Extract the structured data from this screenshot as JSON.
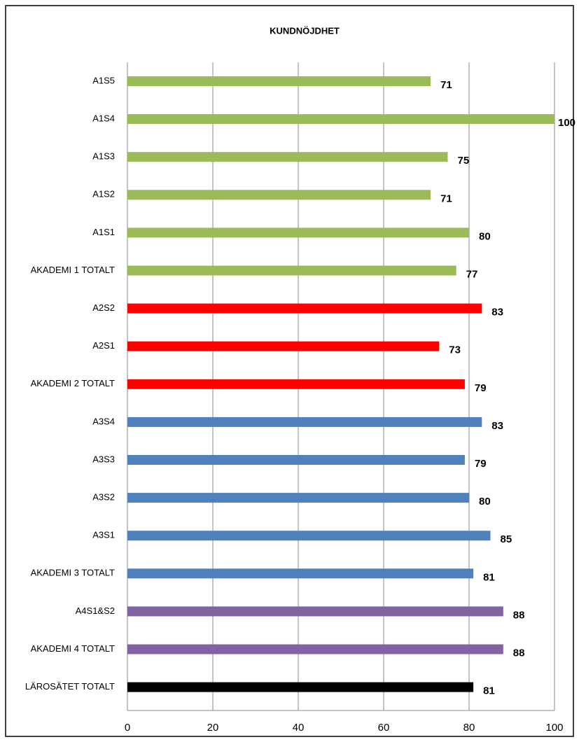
{
  "chart_data": {
    "type": "bar",
    "orientation": "horizontal",
    "title": "KUNDNÖJDHET",
    "categories": [
      "A1S5",
      "A1S4",
      "A1S3",
      "A1S2",
      "A1S1",
      "AKADEMI 1 TOTALT",
      "A2S2",
      "A2S1",
      "AKADEMI 2 TOTALT",
      "A3S4",
      "A3S3",
      "A3S2",
      "A3S1",
      "AKADEMI 3 TOTALT",
      "A4S1&S2",
      "AKADEMI 4 TOTALT",
      "LÄROSÄTET TOTALT"
    ],
    "values": [
      71,
      100,
      75,
      71,
      80,
      77,
      83,
      73,
      79,
      83,
      79,
      80,
      85,
      81,
      88,
      88,
      81
    ],
    "colors": [
      "#9bbb59",
      "#9bbb59",
      "#9bbb59",
      "#9bbb59",
      "#9bbb59",
      "#9bbb59",
      "#ff0000",
      "#ff0000",
      "#ff0000",
      "#4f81bd",
      "#4f81bd",
      "#4f81bd",
      "#4f81bd",
      "#4f81bd",
      "#8064a2",
      "#8064a2",
      "#000000"
    ],
    "xlim": [
      0,
      100
    ],
    "xticks": [
      0,
      20,
      40,
      60,
      80,
      100
    ],
    "grid": true
  }
}
